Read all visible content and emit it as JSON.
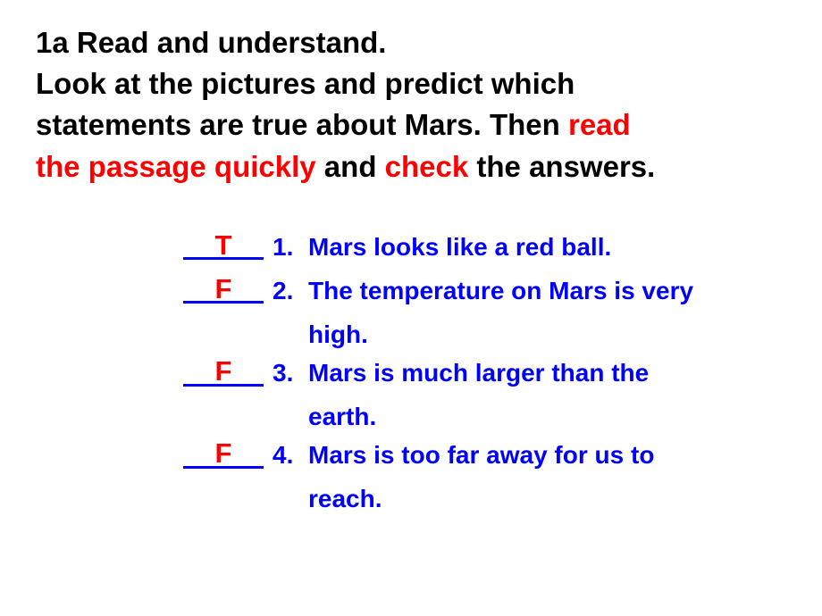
{
  "instruction": {
    "line1": "1a Read and understand.",
    "line2_a": "Look at the pictures and predict which",
    "line3_a": "statements are true about Mars. Then ",
    "line3_red": "read",
    "line4_red": "the passage quickly",
    "line4_a": " and ",
    "line4_red2": "check",
    "line4_b": " the answers."
  },
  "colors": {
    "black": "#000000",
    "red": "#ff0000",
    "blue": "#0000ff",
    "background": "#ffffff"
  },
  "statements": [
    {
      "answer": "T",
      "num": "1.",
      "line1": "Mars looks like a red ball.",
      "line2": ""
    },
    {
      "answer": "F",
      "num": "2.",
      "line1": "The temperature on Mars is very",
      "line2": "high."
    },
    {
      "answer": "F",
      "num": "3.",
      "line1": "Mars is much larger than the",
      "line2": "earth."
    },
    {
      "answer": "F",
      "num": "4.",
      "line1": "Mars is too far away for us to",
      "line2": "reach."
    }
  ]
}
